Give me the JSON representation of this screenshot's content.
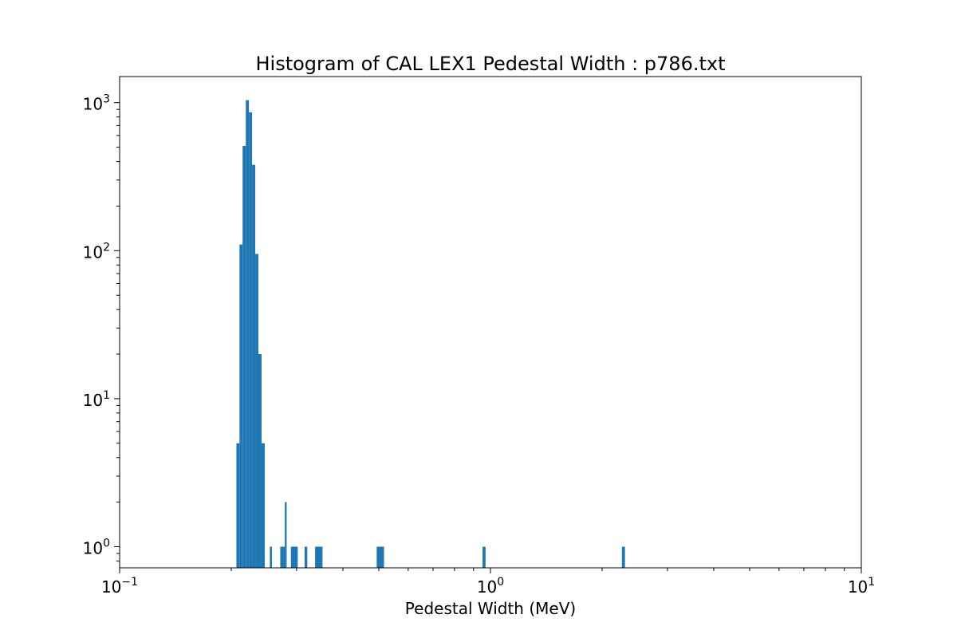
{
  "chart_data": {
    "type": "bar",
    "title": "Histogram of CAL LEX1 Pedestal Width : p786.txt",
    "xlabel": "Pedestal Width (MeV)",
    "ylabel": "",
    "xscale": "log",
    "yscale": "log",
    "xlim": [
      0.1,
      10
    ],
    "ylim": [
      0.72,
      1500
    ],
    "grid": false,
    "color": "#1f77b4",
    "xticks": [
      {
        "value": 0.1,
        "base": "10",
        "exp": "−1"
      },
      {
        "value": 1,
        "base": "10",
        "exp": "0"
      },
      {
        "value": 10,
        "base": "10",
        "exp": "1"
      }
    ],
    "yticks": [
      {
        "value": 1,
        "base": "10",
        "exp": "0"
      },
      {
        "value": 10,
        "base": "10",
        "exp": "1"
      },
      {
        "value": 100,
        "base": "10",
        "exp": "2"
      },
      {
        "value": 1000,
        "base": "10",
        "exp": "3"
      }
    ],
    "bins": [
      {
        "x0": 0.2065,
        "x1": 0.2105,
        "count": 5
      },
      {
        "x0": 0.2105,
        "x1": 0.2146,
        "count": 110
      },
      {
        "x0": 0.2146,
        "x1": 0.2189,
        "count": 510
      },
      {
        "x0": 0.2189,
        "x1": 0.2232,
        "count": 1040
      },
      {
        "x0": 0.2232,
        "x1": 0.2276,
        "count": 860
      },
      {
        "x0": 0.2276,
        "x1": 0.2321,
        "count": 380
      },
      {
        "x0": 0.2321,
        "x1": 0.2367,
        "count": 95
      },
      {
        "x0": 0.2367,
        "x1": 0.2414,
        "count": 20
      },
      {
        "x0": 0.2414,
        "x1": 0.2462,
        "count": 5
      },
      {
        "x0": 0.2542,
        "x1": 0.2575,
        "count": 1
      },
      {
        "x0": 0.2711,
        "x1": 0.2789,
        "count": 1
      },
      {
        "x0": 0.2789,
        "x1": 0.2821,
        "count": 2
      },
      {
        "x0": 0.2896,
        "x1": 0.3022,
        "count": 1
      },
      {
        "x0": 0.3153,
        "x1": 0.3206,
        "count": 1
      },
      {
        "x0": 0.3366,
        "x1": 0.3524,
        "count": 1
      },
      {
        "x0": 0.4934,
        "x1": 0.5163,
        "count": 1
      },
      {
        "x0": 0.952,
        "x1": 0.97,
        "count": 1
      },
      {
        "x0": 2.262,
        "x1": 2.305,
        "count": 1
      }
    ]
  }
}
